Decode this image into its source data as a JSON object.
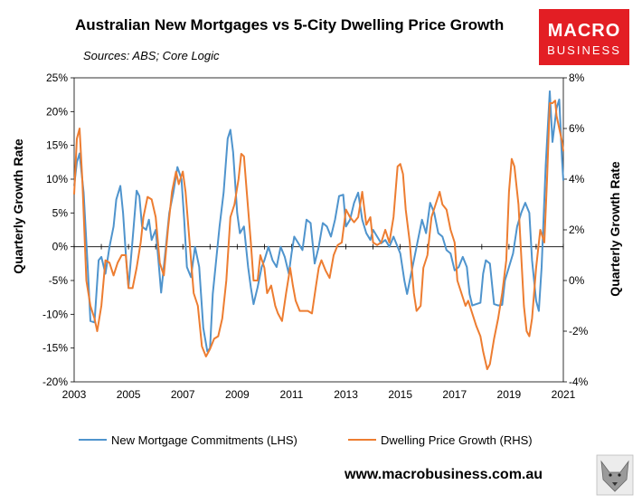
{
  "chart_data": {
    "type": "line",
    "title": "Australian New Mortgages vs 5-City Dwelling Price Growth",
    "subtitle": "Sources: ABS; Core Logic",
    "ylabel_left": "Quarterly  Growth Rate",
    "ylabel_right": "Quarterly Growth Rate",
    "xlim": [
      2003,
      2021
    ],
    "ylim_left": [
      -20,
      25
    ],
    "ylim_right": [
      -4,
      8
    ],
    "x_ticks": [
      "2003",
      "2005",
      "2007",
      "2009",
      "2011",
      "2013",
      "2015",
      "2017",
      "2019",
      "2021"
    ],
    "y_ticks_left": [
      "25%",
      "20%",
      "15%",
      "10%",
      "5%",
      "0%",
      "-5%",
      "-10%",
      "-15%",
      "-20%"
    ],
    "y_ticks_right": [
      "8%",
      "6%",
      "4%",
      "2%",
      "0%",
      "-2%",
      "-4%"
    ],
    "grid": false,
    "legend_position": "bottom",
    "series": [
      {
        "name": "New Mortgage Commitments (LHS)",
        "axis": "left",
        "color": "#4f94cd",
        "points": [
          [
            2003.0,
            9
          ],
          [
            2003.1,
            12.5
          ],
          [
            2003.2,
            13.8
          ],
          [
            2003.35,
            8
          ],
          [
            2003.5,
            -3
          ],
          [
            2003.6,
            -11
          ],
          [
            2003.75,
            -11.2
          ],
          [
            2003.9,
            -2
          ],
          [
            2004.0,
            -1.5
          ],
          [
            2004.15,
            -4
          ],
          [
            2004.3,
            0
          ],
          [
            2004.45,
            3
          ],
          [
            2004.55,
            7
          ],
          [
            2004.7,
            9
          ],
          [
            2004.8,
            5
          ],
          [
            2004.9,
            -1
          ],
          [
            2005.0,
            -6
          ],
          [
            2005.15,
            1
          ],
          [
            2005.3,
            8.3
          ],
          [
            2005.4,
            7.5
          ],
          [
            2005.5,
            3
          ],
          [
            2005.65,
            2.5
          ],
          [
            2005.75,
            4
          ],
          [
            2005.85,
            1
          ],
          [
            2006.0,
            2.5
          ],
          [
            2006.1,
            -2
          ],
          [
            2006.2,
            -6.8
          ],
          [
            2006.35,
            -1
          ],
          [
            2006.5,
            5
          ],
          [
            2006.65,
            8
          ],
          [
            2006.8,
            11.8
          ],
          [
            2006.95,
            10
          ],
          [
            2007.05,
            4
          ],
          [
            2007.15,
            -3
          ],
          [
            2007.3,
            -4.5
          ],
          [
            2007.45,
            0
          ],
          [
            2007.6,
            -3
          ],
          [
            2007.75,
            -12
          ],
          [
            2007.9,
            -15.5
          ],
          [
            2008.0,
            -15
          ],
          [
            2008.1,
            -7
          ],
          [
            2008.2,
            -3
          ],
          [
            2008.35,
            3
          ],
          [
            2008.5,
            8
          ],
          [
            2008.65,
            16
          ],
          [
            2008.75,
            17.3
          ],
          [
            2008.85,
            14
          ],
          [
            2009.0,
            5
          ],
          [
            2009.1,
            2
          ],
          [
            2009.25,
            3
          ],
          [
            2009.4,
            -3
          ],
          [
            2009.5,
            -6
          ],
          [
            2009.6,
            -8.5
          ],
          [
            2009.75,
            -6
          ],
          [
            2009.9,
            -3
          ],
          [
            2010.0,
            -2
          ],
          [
            2010.15,
            0
          ],
          [
            2010.3,
            -2
          ],
          [
            2010.45,
            -3
          ],
          [
            2010.6,
            0
          ],
          [
            2010.75,
            -1.5
          ],
          [
            2010.9,
            -4
          ],
          [
            2011.0,
            -1
          ],
          [
            2011.1,
            1.5
          ],
          [
            2011.25,
            0.5
          ],
          [
            2011.4,
            -0.5
          ],
          [
            2011.55,
            4
          ],
          [
            2011.7,
            3.5
          ],
          [
            2011.85,
            -2.5
          ],
          [
            2012.0,
            0
          ],
          [
            2012.15,
            3.5
          ],
          [
            2012.3,
            3
          ],
          [
            2012.45,
            1.5
          ],
          [
            2012.6,
            4
          ],
          [
            2012.75,
            7.5
          ],
          [
            2012.9,
            7.7
          ],
          [
            2013.0,
            3
          ],
          [
            2013.15,
            4
          ],
          [
            2013.3,
            6.5
          ],
          [
            2013.45,
            8
          ],
          [
            2013.6,
            4
          ],
          [
            2013.75,
            2
          ],
          [
            2013.9,
            1
          ],
          [
            2014.0,
            2.5
          ],
          [
            2014.15,
            1.5
          ],
          [
            2014.3,
            0.5
          ],
          [
            2014.45,
            1
          ],
          [
            2014.6,
            0
          ],
          [
            2014.75,
            1.5
          ],
          [
            2014.9,
            0
          ],
          [
            2015.0,
            -1
          ],
          [
            2015.15,
            -5
          ],
          [
            2015.25,
            -7
          ],
          [
            2015.35,
            -5
          ],
          [
            2015.5,
            -2
          ],
          [
            2015.65,
            1
          ],
          [
            2015.8,
            4
          ],
          [
            2015.95,
            2
          ],
          [
            2016.1,
            6.5
          ],
          [
            2016.25,
            5
          ],
          [
            2016.4,
            2
          ],
          [
            2016.55,
            1.5
          ],
          [
            2016.7,
            -0.5
          ],
          [
            2016.85,
            -1
          ],
          [
            2017.0,
            -3.5
          ],
          [
            2017.15,
            -3
          ],
          [
            2017.3,
            -1.5
          ],
          [
            2017.45,
            -3
          ],
          [
            2017.55,
            -7
          ],
          [
            2017.65,
            -8.7
          ],
          [
            2017.8,
            -8.5
          ],
          [
            2017.95,
            -8.3
          ],
          [
            2018.05,
            -4
          ],
          [
            2018.15,
            -2
          ],
          [
            2018.3,
            -2.5
          ],
          [
            2018.45,
            -8.5
          ],
          [
            2018.6,
            -8.7
          ],
          [
            2018.75,
            -8.6
          ],
          [
            2018.85,
            -5
          ],
          [
            2019.0,
            -3
          ],
          [
            2019.15,
            -1
          ],
          [
            2019.3,
            3
          ],
          [
            2019.45,
            5
          ],
          [
            2019.6,
            6.5
          ],
          [
            2019.75,
            5
          ],
          [
            2019.85,
            -2
          ],
          [
            2020.0,
            -8
          ],
          [
            2020.1,
            -9.5
          ],
          [
            2020.2,
            -3
          ],
          [
            2020.35,
            12
          ],
          [
            2020.5,
            23
          ],
          [
            2020.6,
            15.5
          ],
          [
            2020.75,
            20.5
          ],
          [
            2020.85,
            21.8
          ],
          [
            2020.95,
            13
          ],
          [
            2021.0,
            9.8
          ]
        ]
      },
      {
        "name": "Dwelling Price Growth (RHS)",
        "axis": "right",
        "color": "#ed7d31",
        "points": [
          [
            2003.0,
            3.4
          ],
          [
            2003.1,
            5.6
          ],
          [
            2003.2,
            6.0
          ],
          [
            2003.3,
            4
          ],
          [
            2003.45,
            0
          ],
          [
            2003.6,
            -1
          ],
          [
            2003.75,
            -1.5
          ],
          [
            2003.85,
            -2.0
          ],
          [
            2004.0,
            -1
          ],
          [
            2004.15,
            0.8
          ],
          [
            2004.3,
            0.7
          ],
          [
            2004.45,
            0.2
          ],
          [
            2004.6,
            0.7
          ],
          [
            2004.75,
            1
          ],
          [
            2004.9,
            1
          ],
          [
            2005.0,
            -0.3
          ],
          [
            2005.15,
            -0.3
          ],
          [
            2005.3,
            0.5
          ],
          [
            2005.45,
            1.5
          ],
          [
            2005.55,
            2.5
          ],
          [
            2005.7,
            3.3
          ],
          [
            2005.85,
            3.2
          ],
          [
            2006.0,
            2.5
          ],
          [
            2006.15,
            0.7
          ],
          [
            2006.3,
            0.2
          ],
          [
            2006.45,
            2
          ],
          [
            2006.6,
            3.5
          ],
          [
            2006.75,
            4.3
          ],
          [
            2006.85,
            3.8
          ],
          [
            2007.0,
            4.3
          ],
          [
            2007.1,
            3.5
          ],
          [
            2007.25,
            1.5
          ],
          [
            2007.4,
            -0.5
          ],
          [
            2007.55,
            -1
          ],
          [
            2007.7,
            -2.6
          ],
          [
            2007.85,
            -3.0
          ],
          [
            2008.0,
            -2.7
          ],
          [
            2008.15,
            -2.3
          ],
          [
            2008.3,
            -2.2
          ],
          [
            2008.45,
            -1.5
          ],
          [
            2008.6,
            0
          ],
          [
            2008.75,
            2.5
          ],
          [
            2008.9,
            3.0
          ],
          [
            2009.05,
            4
          ],
          [
            2009.15,
            5.0
          ],
          [
            2009.25,
            4.9
          ],
          [
            2009.35,
            3.5
          ],
          [
            2009.5,
            1.5
          ],
          [
            2009.6,
            0
          ],
          [
            2009.75,
            0
          ],
          [
            2009.85,
            1
          ],
          [
            2010.0,
            0.5
          ],
          [
            2010.1,
            -0.5
          ],
          [
            2010.25,
            -0.2
          ],
          [
            2010.4,
            -1
          ],
          [
            2010.5,
            -1.3
          ],
          [
            2010.65,
            -1.6
          ],
          [
            2010.8,
            -0.5
          ],
          [
            2010.95,
            0.5
          ],
          [
            2011.05,
            -0.2
          ],
          [
            2011.15,
            -0.8
          ],
          [
            2011.3,
            -1.2
          ],
          [
            2011.45,
            -1.2
          ],
          [
            2011.6,
            -1.2
          ],
          [
            2011.75,
            -1.3
          ],
          [
            2011.9,
            -0.2
          ],
          [
            2012.0,
            0.5
          ],
          [
            2012.1,
            0.8
          ],
          [
            2012.25,
            0.4
          ],
          [
            2012.4,
            0.1
          ],
          [
            2012.55,
            1
          ],
          [
            2012.7,
            1.4
          ],
          [
            2012.85,
            1.5
          ],
          [
            2013.0,
            2.8
          ],
          [
            2013.15,
            2.5
          ],
          [
            2013.3,
            2.3
          ],
          [
            2013.45,
            2.5
          ],
          [
            2013.6,
            3.5
          ],
          [
            2013.75,
            2.2
          ],
          [
            2013.9,
            2.5
          ],
          [
            2014.0,
            1.5
          ],
          [
            2014.15,
            1.4
          ],
          [
            2014.3,
            1.5
          ],
          [
            2014.45,
            2
          ],
          [
            2014.6,
            1.5
          ],
          [
            2014.75,
            2.5
          ],
          [
            2014.9,
            4.5
          ],
          [
            2015.0,
            4.6
          ],
          [
            2015.1,
            4.2
          ],
          [
            2015.2,
            2.8
          ],
          [
            2015.35,
            1.5
          ],
          [
            2015.5,
            -0.5
          ],
          [
            2015.6,
            -1.2
          ],
          [
            2015.75,
            -1
          ],
          [
            2015.85,
            0.5
          ],
          [
            2016.0,
            1
          ],
          [
            2016.15,
            2.5
          ],
          [
            2016.3,
            3
          ],
          [
            2016.45,
            3.5
          ],
          [
            2016.55,
            3
          ],
          [
            2016.7,
            2.8
          ],
          [
            2016.85,
            2
          ],
          [
            2017.0,
            1.5
          ],
          [
            2017.1,
            0
          ],
          [
            2017.25,
            -0.5
          ],
          [
            2017.4,
            -1
          ],
          [
            2017.5,
            -0.8
          ],
          [
            2017.65,
            -1.3
          ],
          [
            2017.8,
            -1.8
          ],
          [
            2017.95,
            -2.2
          ],
          [
            2018.05,
            -2.8
          ],
          [
            2018.2,
            -3.5
          ],
          [
            2018.3,
            -3.3
          ],
          [
            2018.45,
            -2.3
          ],
          [
            2018.6,
            -1.5
          ],
          [
            2018.75,
            -0.5
          ],
          [
            2018.9,
            0.8
          ],
          [
            2019.0,
            3.5
          ],
          [
            2019.1,
            4.8
          ],
          [
            2019.2,
            4.5
          ],
          [
            2019.35,
            3
          ],
          [
            2019.45,
            1
          ],
          [
            2019.55,
            -1
          ],
          [
            2019.65,
            -2
          ],
          [
            2019.75,
            -2.2
          ],
          [
            2019.85,
            -1.5
          ],
          [
            2020.0,
            0.5
          ],
          [
            2020.15,
            2
          ],
          [
            2020.3,
            1.5
          ],
          [
            2020.4,
            4
          ],
          [
            2020.5,
            7
          ],
          [
            2020.6,
            7.0
          ],
          [
            2020.7,
            7.1
          ],
          [
            2020.75,
            6.5
          ],
          [
            2020.85,
            6
          ],
          [
            2020.95,
            5.5
          ],
          [
            2021.0,
            5.1
          ]
        ]
      }
    ]
  },
  "logo": {
    "line1": "MACRO",
    "line2": "BUSINESS",
    "bg_color": "#e31e24"
  },
  "footer": {
    "site": "www.macrobusiness.com.au"
  },
  "watermark": "wolf-head-icon"
}
